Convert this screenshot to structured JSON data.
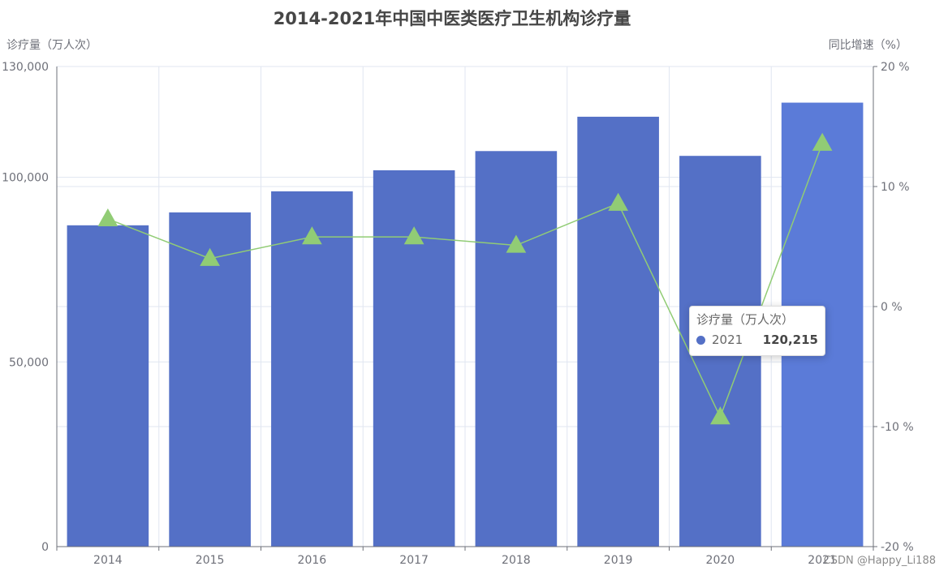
{
  "chart_data": {
    "type": "bar",
    "title": "2014-2021年中国中医类医疗卫生机构诊疗量",
    "categories": [
      "2014",
      "2015",
      "2016",
      "2017",
      "2018",
      "2019",
      "2020",
      "2021"
    ],
    "series": [
      {
        "name": "诊疗量（万人次）",
        "type": "bar",
        "axis": "left",
        "color": "#5470c6",
        "highlight_color": "#5b7bd8",
        "values": [
          87000,
          90500,
          96200,
          101900,
          107100,
          116400,
          105800,
          120215
        ]
      },
      {
        "type": "line",
        "axis": "right",
        "color": "#91cc75",
        "marker": "triangle",
        "values": [
          7.3,
          4.0,
          5.8,
          5.8,
          5.1,
          8.6,
          -9.2,
          13.6
        ]
      }
    ],
    "y_left": {
      "label": "诊疗量（万人次）",
      "ylim": [
        0,
        130000
      ],
      "ticks": [
        0,
        50000,
        100000,
        130000
      ],
      "tick_labels": [
        "0",
        "50,000",
        "100,000",
        "130,000"
      ]
    },
    "y_right": {
      "label": "同比增速（%）",
      "ylim": [
        -20,
        20
      ],
      "ticks": [
        -20,
        -10,
        0,
        10,
        20
      ],
      "tick_labels": [
        "-20 %",
        "-10 %",
        "0 %",
        "10 %",
        "20 %"
      ]
    },
    "grid": true
  },
  "tooltip": {
    "title": "诊疗量（万人次）",
    "category": "2021",
    "value": "120,215",
    "color": "#5470c6"
  },
  "watermark": "CSDN @Happy_Li188"
}
